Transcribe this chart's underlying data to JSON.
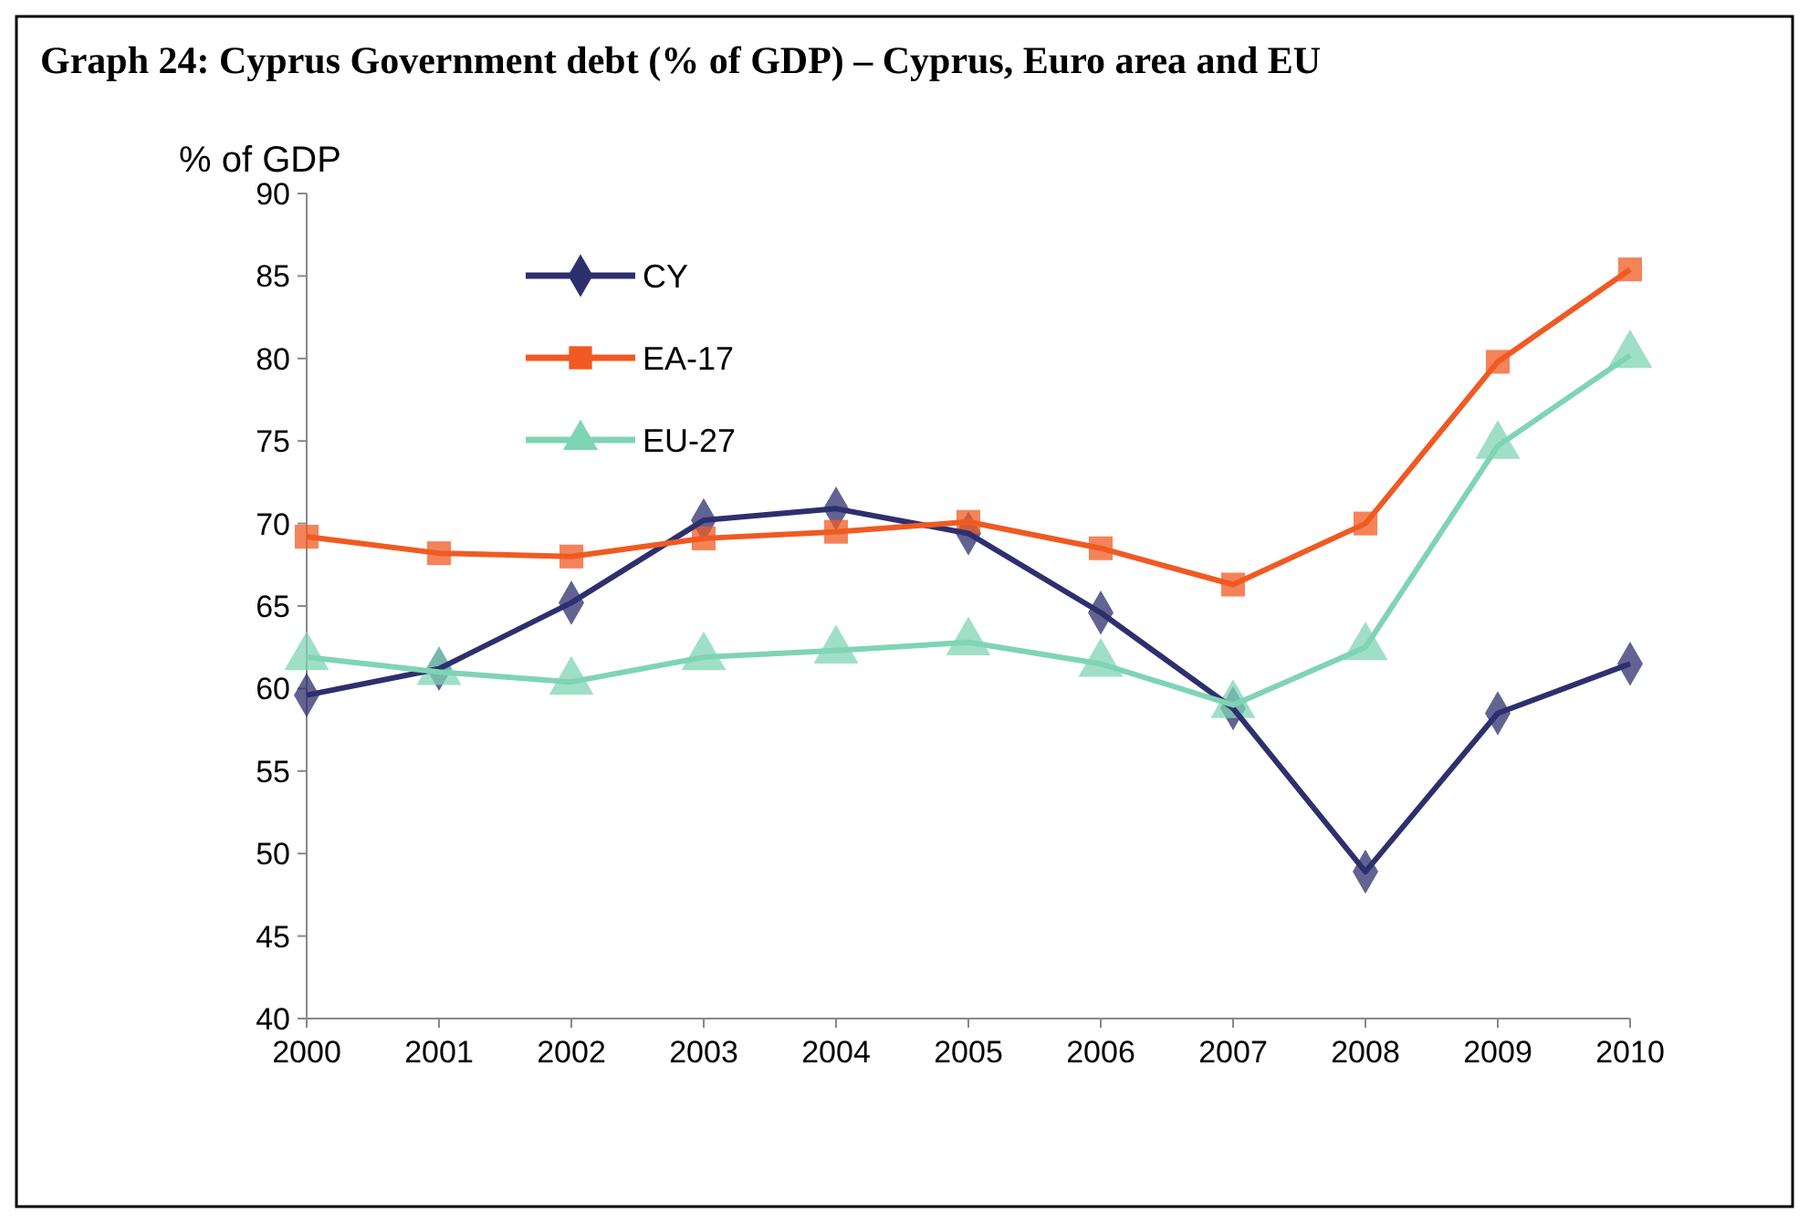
{
  "chart_data": {
    "type": "line",
    "title": "Graph 24: Cyprus Government debt (% of GDP) – Cyprus, Euro area and EU",
    "ylabel": "% of GDP",
    "categories": [
      "2000",
      "2001",
      "2002",
      "2003",
      "2004",
      "2005",
      "2006",
      "2007",
      "2008",
      "2009",
      "2010"
    ],
    "series": [
      {
        "name": "CY",
        "color": "#2e2f6e",
        "marker": "diamond",
        "values": [
          59.6,
          61.2,
          65.2,
          70.2,
          70.9,
          69.4,
          64.6,
          58.8,
          48.9,
          58.5,
          61.5
        ]
      },
      {
        "name": "EA-17",
        "color": "#f05a22",
        "marker": "square",
        "values": [
          69.2,
          68.2,
          68.0,
          69.1,
          69.5,
          70.1,
          68.5,
          66.3,
          70.0,
          79.8,
          85.4
        ]
      },
      {
        "name": "EU-27",
        "color": "#7fd4b4",
        "marker": "triangle",
        "values": [
          61.9,
          61.0,
          60.4,
          61.9,
          62.3,
          62.8,
          61.5,
          59.0,
          62.5,
          74.7,
          80.2
        ]
      }
    ],
    "ylim": [
      40,
      90
    ],
    "yticks": [
      40,
      45,
      50,
      55,
      60,
      65,
      70,
      75,
      80,
      85,
      90
    ],
    "grid": false,
    "legend": "top left",
    "line_style": "solid"
  }
}
